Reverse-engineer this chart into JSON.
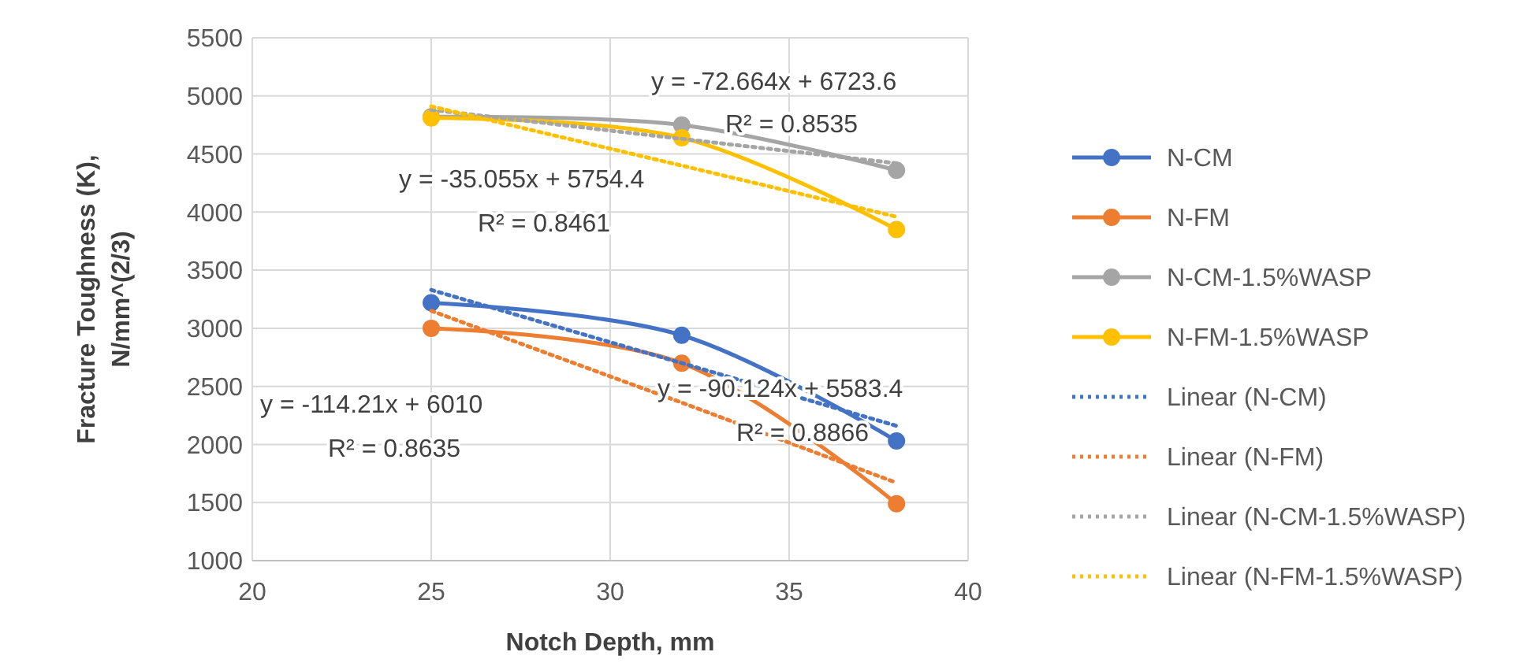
{
  "chart_data": {
    "type": "line",
    "xlabel": "Notch Depth, mm",
    "ylabel": "Fracture Toughness (K), N/mm^(2/3)",
    "x": [
      25,
      32,
      38
    ],
    "xlim": [
      20,
      40
    ],
    "xticks": [
      20,
      25,
      30,
      35,
      40
    ],
    "ylim": [
      1000,
      5500
    ],
    "yticks": [
      1000,
      1500,
      2000,
      2500,
      3000,
      3500,
      4000,
      4500,
      5000,
      5500
    ],
    "grid": true,
    "legend": "right",
    "marker": "circle",
    "line_style": "solid",
    "series": [
      {
        "name": "N-CM",
        "color": "#4472c4",
        "values": [
          3220,
          2940,
          2030
        ]
      },
      {
        "name": "N-FM",
        "color": "#ed7d31",
        "values": [
          3000,
          2700,
          1490
        ]
      },
      {
        "name": "N-CM-1.5%WASP",
        "color": "#a5a5a5",
        "values": [
          4820,
          4750,
          4360
        ]
      },
      {
        "name": "N-FM-1.5%WASP",
        "color": "#ffc000",
        "values": [
          4810,
          4640,
          3850
        ]
      },
      {
        "name": "Linear (N-CM)",
        "color": "#4472c4",
        "values": [
          3330,
          2700,
          2160
        ],
        "marker": "none",
        "line_style": "dotted"
      },
      {
        "name": "Linear (N-FM)",
        "color": "#ed7d31",
        "values": [
          3150,
          2360,
          1670
        ],
        "marker": "none",
        "line_style": "dotted"
      },
      {
        "name": "Linear (N-CM-1.5%WASP)",
        "color": "#a5a5a5",
        "values": [
          4880,
          4630,
          4420
        ],
        "marker": "none",
        "line_style": "dotted"
      },
      {
        "name": "Linear (N-FM-1.5%WASP)",
        "color": "#ffc000",
        "values": [
          4910,
          4400,
          3960
        ],
        "marker": "none",
        "line_style": "dotted"
      }
    ],
    "annotations": [
      "y = -72.664x + 6723.6",
      "R² = 0.8535",
      "y = -35.055x + 5754.4",
      "R² = 0.8461",
      "y = -90.124x + 5583.4",
      "R² = 0.8866",
      "y = -114.21x + 6010",
      "R² = 0.8635"
    ]
  }
}
